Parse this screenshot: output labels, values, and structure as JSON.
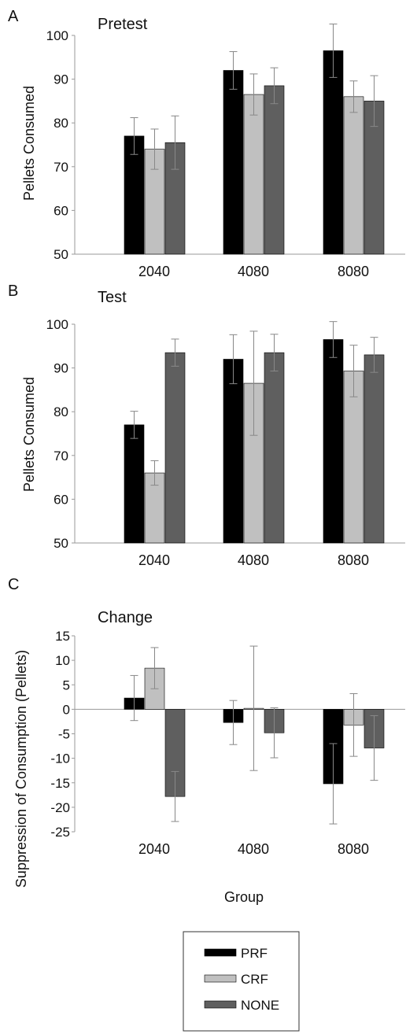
{
  "colors": {
    "PRF": "#000000",
    "CRF": "#c0c0c0",
    "NONE": "#5f5f5f",
    "axis": "#9a9a9a",
    "error_bar": "#888888"
  },
  "legend": {
    "entries": [
      "PRF",
      "CRF",
      "NONE"
    ]
  },
  "chart_data": [
    {
      "type": "bar",
      "panel": "A",
      "title": "Pretest",
      "xlabel": "",
      "ylabel": "Pellets Consumed",
      "ylim": [
        50,
        100
      ],
      "yticks": [
        50,
        60,
        70,
        80,
        90,
        100
      ],
      "categories": [
        "2040",
        "4080",
        "8080"
      ],
      "series": [
        {
          "name": "PRF",
          "values": [
            77,
            92,
            96.5
          ],
          "errors": [
            4.2,
            4.3,
            6.1
          ]
        },
        {
          "name": "CRF",
          "values": [
            74,
            86.5,
            86
          ],
          "errors": [
            4.6,
            4.7,
            3.6
          ]
        },
        {
          "name": "NONE",
          "values": [
            75.5,
            88.5,
            85
          ],
          "errors": [
            6.1,
            4.1,
            5.8
          ]
        }
      ]
    },
    {
      "type": "bar",
      "panel": "B",
      "title": "Test",
      "xlabel": "",
      "ylabel": "Pellets Consumed",
      "ylim": [
        50,
        100
      ],
      "yticks": [
        50,
        60,
        70,
        80,
        90,
        100
      ],
      "categories": [
        "2040",
        "4080",
        "8080"
      ],
      "series": [
        {
          "name": "PRF",
          "values": [
            77,
            92,
            96.5
          ],
          "errors": [
            3.1,
            5.6,
            4.1
          ]
        },
        {
          "name": "CRF",
          "values": [
            66,
            86.5,
            89.3
          ],
          "errors": [
            2.8,
            11.9,
            5.9
          ]
        },
        {
          "name": "NONE",
          "values": [
            93.5,
            93.5,
            93
          ],
          "errors": [
            3.1,
            4.2,
            4.0
          ]
        }
      ]
    },
    {
      "type": "bar",
      "panel": "C",
      "title": "Change",
      "xlabel": "Group",
      "ylabel": "Suppression of Consumption (Pellets)",
      "ylim": [
        -25,
        15
      ],
      "yticks": [
        -25,
        -20,
        -15,
        -10,
        -5,
        0,
        5,
        10,
        15
      ],
      "categories": [
        "2040",
        "4080",
        "8080"
      ],
      "series": [
        {
          "name": "PRF",
          "values": [
            2.3,
            -2.7,
            -15.2
          ],
          "errors": [
            4.6,
            4.5,
            8.2
          ]
        },
        {
          "name": "CRF",
          "values": [
            8.4,
            0.2,
            -3.2
          ],
          "errors": [
            4.2,
            12.7,
            6.4
          ]
        },
        {
          "name": "NONE",
          "values": [
            -17.8,
            -4.8,
            -7.9
          ],
          "errors": [
            5.1,
            5.1,
            6.6
          ]
        }
      ]
    }
  ]
}
